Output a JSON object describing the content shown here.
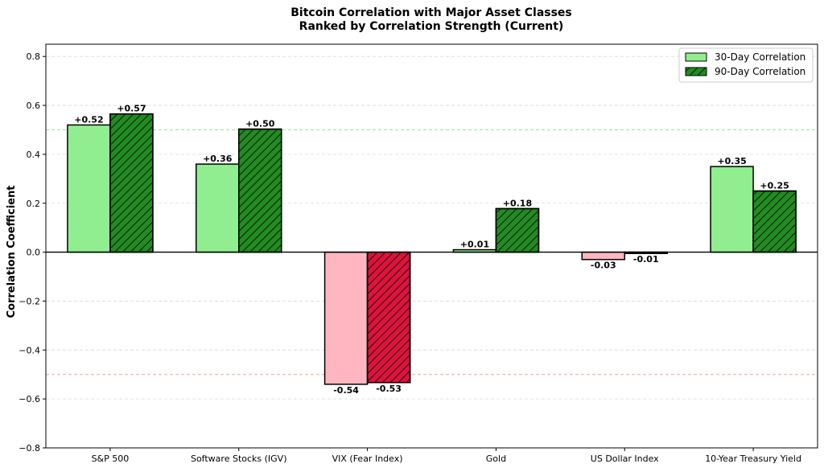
{
  "chart_data": {
    "type": "bar",
    "title": "Bitcoin Correlation with Major Asset Classes",
    "subtitle": "Ranked by Correlation Strength (Current)",
    "xlabel": "",
    "ylabel": "Correlation Coefficient",
    "ylim": [
      -0.8,
      0.85
    ],
    "yticks": [
      -0.8,
      -0.6,
      -0.4,
      -0.2,
      0.0,
      0.2,
      0.4,
      0.6,
      0.8
    ],
    "ytick_labels": [
      "−0.8",
      "−0.6",
      "−0.4",
      "−0.2",
      "0.0",
      "0.2",
      "0.4",
      "0.6",
      "0.8"
    ],
    "grid": true,
    "reference_lines": [
      0.5,
      -0.5
    ],
    "legend_position": "top-right",
    "categories": [
      "S&P 500",
      "Software Stocks (IGV)",
      "VIX (Fear Index)",
      "Gold",
      "US Dollar Index",
      "10-Year Treasury Yield"
    ],
    "series": [
      {
        "name": "30-Day Correlation",
        "values": [
          0.52,
          0.36,
          -0.54,
          0.01,
          -0.03,
          0.35
        ],
        "labels": [
          "+0.52",
          "+0.36",
          "-0.54",
          "+0.01",
          "-0.03",
          "+0.35"
        ]
      },
      {
        "name": "90-Day Correlation",
        "values": [
          0.565,
          0.503,
          -0.533,
          0.178,
          -0.005,
          0.25
        ],
        "labels": [
          "+0.57",
          "+0.50",
          "-0.53",
          "+0.18",
          "-0.01",
          "+0.25"
        ]
      }
    ],
    "colors": {
      "positive_30d": "#90ee90",
      "negative_30d": "#ffb6c1",
      "positive_90d": "#228b22",
      "negative_90d": "#dc143c",
      "ref_positive": "#90ee90",
      "ref_negative": "#f4a09a",
      "grid": "#d9d9d9"
    }
  }
}
